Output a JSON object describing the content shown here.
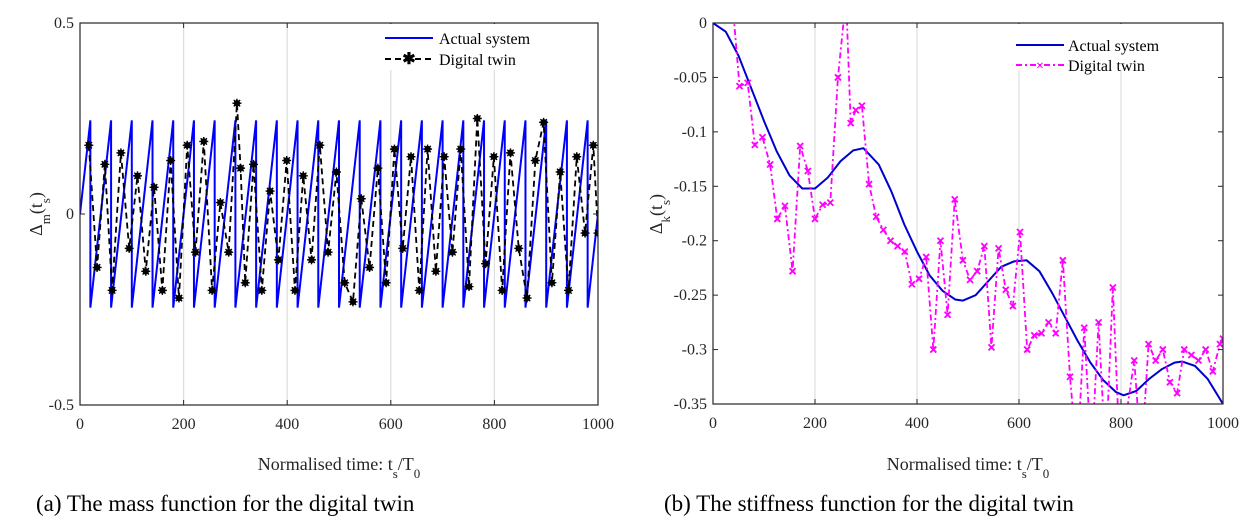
{
  "captions": {
    "a": "(a) The mass function for the digital twin",
    "b": "(b) The stiffness function for the digital twin"
  },
  "colors": {
    "actual_a": "#0000ff",
    "twin_a": "#000000",
    "actual_b": "#0000cc",
    "twin_b": "#ff00ff",
    "grid": "#dedede"
  },
  "chart_data": [
    {
      "type": "line",
      "xlabel": "Normalised time: t_s/T_0",
      "ylabel": "Δ_m(t_s)",
      "xlim": [
        0,
        1000
      ],
      "ylim": [
        -0.5,
        0.5
      ],
      "xticks": [
        0,
        200,
        400,
        600,
        800,
        1000
      ],
      "yticks": [
        -0.5,
        0,
        0.5
      ],
      "xtick_labels": [
        "0",
        "200",
        "400",
        "600",
        "800",
        "1000"
      ],
      "ytick_labels": [
        "-0.5",
        "0",
        "0.5"
      ],
      "grid": "vertical",
      "legend": "top-right",
      "series": [
        {
          "name": "Actual system",
          "style": "solid",
          "description": "sawtooth, amplitude 0.25, period ~40",
          "x": [
            0,
            20,
            20,
            60,
            60,
            100,
            100,
            140,
            140,
            180,
            180,
            220,
            220,
            260,
            260,
            300,
            300,
            340,
            340,
            380,
            380,
            420,
            420,
            460,
            460,
            500,
            500,
            540,
            540,
            580,
            580,
            620,
            620,
            660,
            660,
            700,
            700,
            740,
            740,
            780,
            780,
            820,
            820,
            860,
            860,
            900,
            900,
            940,
            940,
            980,
            980,
            1000
          ],
          "y": [
            0,
            0.245,
            -0.245,
            0.245,
            -0.245,
            0.245,
            -0.245,
            0.245,
            -0.245,
            0.245,
            -0.245,
            0.245,
            -0.245,
            0.245,
            -0.245,
            0.245,
            -0.245,
            0.245,
            -0.245,
            0.245,
            -0.245,
            0.245,
            -0.245,
            0.245,
            -0.245,
            0.245,
            -0.245,
            0.245,
            -0.245,
            0.245,
            -0.245,
            0.245,
            -0.245,
            0.245,
            -0.245,
            0.245,
            -0.245,
            0.245,
            -0.245,
            0.245,
            -0.245,
            0.245,
            -0.245,
            0.245,
            -0.245,
            0.245,
            -0.245,
            0.245,
            -0.245,
            0.245,
            -0.245,
            0
          ]
        },
        {
          "name": "Digital twin",
          "style": "dashed-star",
          "x": [
            17,
            33,
            48,
            62,
            79,
            95,
            111,
            127,
            143,
            159,
            175,
            191,
            207,
            223,
            239,
            255,
            271,
            287,
            303,
            310,
            319,
            335,
            351,
            367,
            383,
            399,
            415,
            431,
            447,
            463,
            479,
            495,
            511,
            527,
            543,
            559,
            575,
            591,
            607,
            623,
            639,
            655,
            671,
            687,
            703,
            719,
            735,
            751,
            767,
            783,
            799,
            815,
            831,
            847,
            863,
            879,
            895,
            911,
            927,
            943,
            959,
            975,
            991,
            1000
          ],
          "y": [
            0.18,
            -0.14,
            0.13,
            -0.2,
            0.16,
            -0.09,
            0.1,
            -0.15,
            0.07,
            -0.2,
            0.14,
            -0.22,
            0.18,
            -0.1,
            0.19,
            -0.2,
            0.03,
            -0.1,
            0.29,
            0.12,
            -0.18,
            0.13,
            -0.2,
            0.06,
            -0.12,
            0.14,
            -0.2,
            0.1,
            -0.12,
            0.18,
            -0.1,
            0.11,
            -0.18,
            -0.23,
            0.04,
            -0.14,
            0.12,
            -0.18,
            0.17,
            -0.09,
            0.15,
            -0.2,
            0.17,
            -0.15,
            0.15,
            -0.1,
            0.17,
            -0.19,
            0.25,
            -0.13,
            0.15,
            -0.2,
            0.16,
            -0.09,
            -0.22,
            0.14,
            0.24,
            -0.18,
            0.11,
            -0.2,
            0.15,
            -0.05,
            0.18,
            -0.05
          ]
        }
      ]
    },
    {
      "type": "line",
      "xlabel": "Normalised time: t_s/T_0",
      "ylabel": "Δ_k(t_s)",
      "xlim": [
        0,
        1000
      ],
      "ylim": [
        -0.35,
        0
      ],
      "xticks": [
        0,
        200,
        400,
        600,
        800,
        1000
      ],
      "yticks": [
        -0.35,
        -0.3,
        -0.25,
        -0.2,
        -0.15,
        -0.1,
        -0.05,
        0
      ],
      "xtick_labels": [
        "0",
        "200",
        "400",
        "600",
        "800",
        "1000"
      ],
      "ytick_labels": [
        "-0.35",
        "-0.3",
        "-0.25",
        "-0.2",
        "-0.15",
        "-0.1",
        "-0.05",
        "0"
      ],
      "grid": "vertical",
      "legend": "top-right",
      "series": [
        {
          "name": "Actual system",
          "style": "solid",
          "x": [
            0,
            25,
            50,
            75,
            100,
            125,
            150,
            175,
            200,
            225,
            250,
            275,
            295,
            325,
            350,
            375,
            400,
            425,
            450,
            475,
            490,
            515,
            540,
            565,
            590,
            615,
            640,
            665,
            690,
            715,
            740,
            765,
            790,
            805,
            830,
            855,
            880,
            905,
            920,
            945,
            970,
            1000
          ],
          "y": [
            0,
            -0.008,
            -0.03,
            -0.06,
            -0.09,
            -0.118,
            -0.14,
            -0.152,
            -0.152,
            -0.142,
            -0.127,
            -0.117,
            -0.115,
            -0.13,
            -0.155,
            -0.185,
            -0.21,
            -0.232,
            -0.246,
            -0.254,
            -0.255,
            -0.25,
            -0.237,
            -0.224,
            -0.219,
            -0.218,
            -0.228,
            -0.248,
            -0.27,
            -0.292,
            -0.312,
            -0.328,
            -0.339,
            -0.342,
            -0.338,
            -0.327,
            -0.318,
            -0.312,
            -0.311,
            -0.315,
            -0.327,
            -0.35
          ]
        },
        {
          "name": "Digital twin",
          "style": "dash-dot-x",
          "x": [
            38,
            52,
            68,
            82,
            97,
            112,
            126,
            141,
            156,
            171,
            186,
            200,
            215,
            230,
            245,
            258,
            262,
            270,
            280,
            292,
            306,
            320,
            334,
            348,
            362,
            376,
            390,
            404,
            418,
            432,
            446,
            460,
            474,
            490,
            504,
            518,
            532,
            546,
            560,
            574,
            588,
            602,
            616,
            630,
            644,
            658,
            672,
            686,
            700,
            714,
            728,
            742,
            756,
            770,
            784,
            798,
            812,
            826,
            840,
            854,
            868,
            882,
            896,
            910,
            924,
            938,
            952,
            966,
            980,
            994,
            1000
          ],
          "y": [
            0.02,
            -0.058,
            -0.055,
            -0.112,
            -0.105,
            -0.13,
            -0.18,
            -0.168,
            -0.228,
            -0.113,
            -0.136,
            -0.18,
            -0.167,
            -0.165,
            -0.05,
            0.01,
            0.01,
            -0.092,
            -0.08,
            -0.076,
            -0.148,
            -0.178,
            -0.19,
            -0.2,
            -0.205,
            -0.21,
            -0.24,
            -0.235,
            -0.215,
            -0.3,
            -0.2,
            -0.268,
            -0.162,
            -0.218,
            -0.236,
            -0.228,
            -0.205,
            -0.298,
            -0.207,
            -0.245,
            -0.26,
            -0.192,
            -0.3,
            -0.287,
            -0.285,
            -0.275,
            -0.285,
            -0.218,
            -0.325,
            -0.4,
            -0.28,
            -0.4,
            -0.275,
            -0.4,
            -0.243,
            -0.4,
            -0.355,
            -0.31,
            -0.4,
            -0.295,
            -0.31,
            -0.3,
            -0.33,
            -0.34,
            -0.3,
            -0.305,
            -0.31,
            -0.3,
            -0.32,
            -0.295,
            -0.29
          ]
        }
      ]
    }
  ]
}
